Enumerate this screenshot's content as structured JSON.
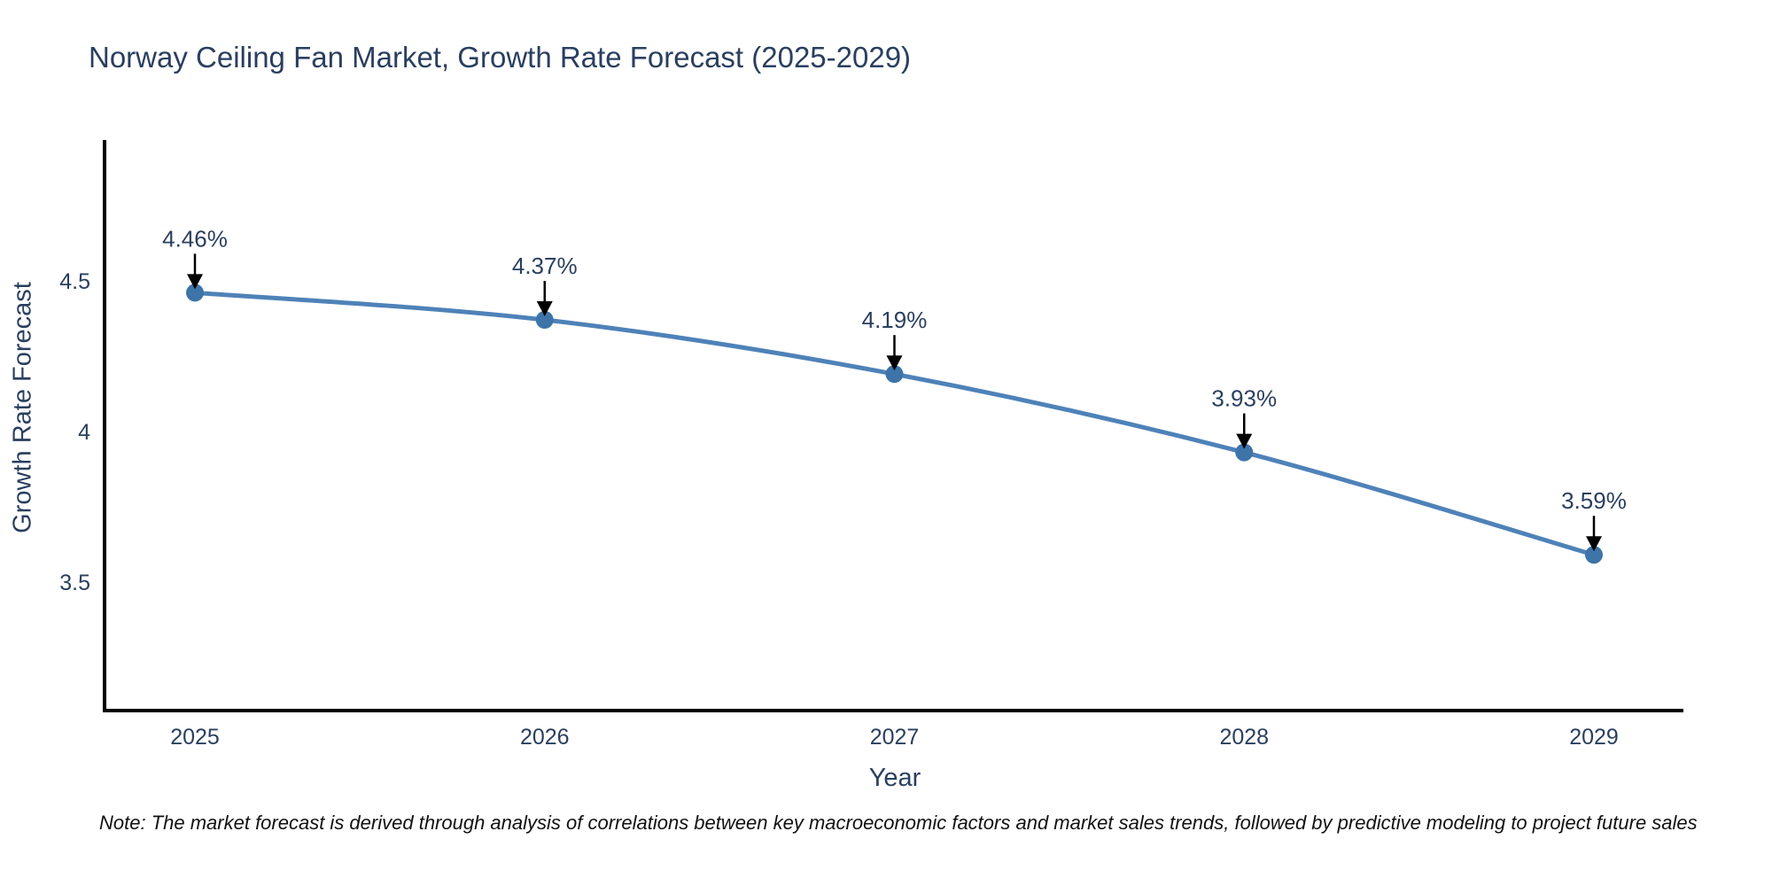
{
  "header": {
    "title": "Norway Ceiling Fan Market, Growth Rate Forecast (2025-2029)"
  },
  "chart_data": {
    "type": "line",
    "title": "Norway Ceiling Fan Market, Growth Rate Forecast (2025-2029)",
    "xlabel": "Year",
    "ylabel": "Growth Rate Forecast",
    "categories": [
      "2025",
      "2026",
      "2027",
      "2028",
      "2029"
    ],
    "values": [
      4.46,
      4.37,
      4.19,
      3.93,
      3.59
    ],
    "point_labels": [
      "4.46%",
      "4.37%",
      "4.19%",
      "3.93%",
      "3.59%"
    ],
    "y_ticks": [
      "4.5",
      "4",
      "3.5"
    ],
    "y_tick_values": [
      4.5,
      4.0,
      3.5
    ],
    "ylim": [
      3.073,
      4.967
    ],
    "grid": false,
    "legend": false,
    "line_shape": "spline",
    "annotations_have_arrows": true,
    "colors": {
      "line": "#4e82b8",
      "marker": "#3e74a8",
      "axis": "#000000",
      "text": "#2a3f5f",
      "arrow": "#000000"
    }
  },
  "footer": {
    "note": "Note: The market forecast is derived through analysis of correlations between key macroeconomic factors and market sales trends, followed by predictive modeling to project future sales"
  }
}
